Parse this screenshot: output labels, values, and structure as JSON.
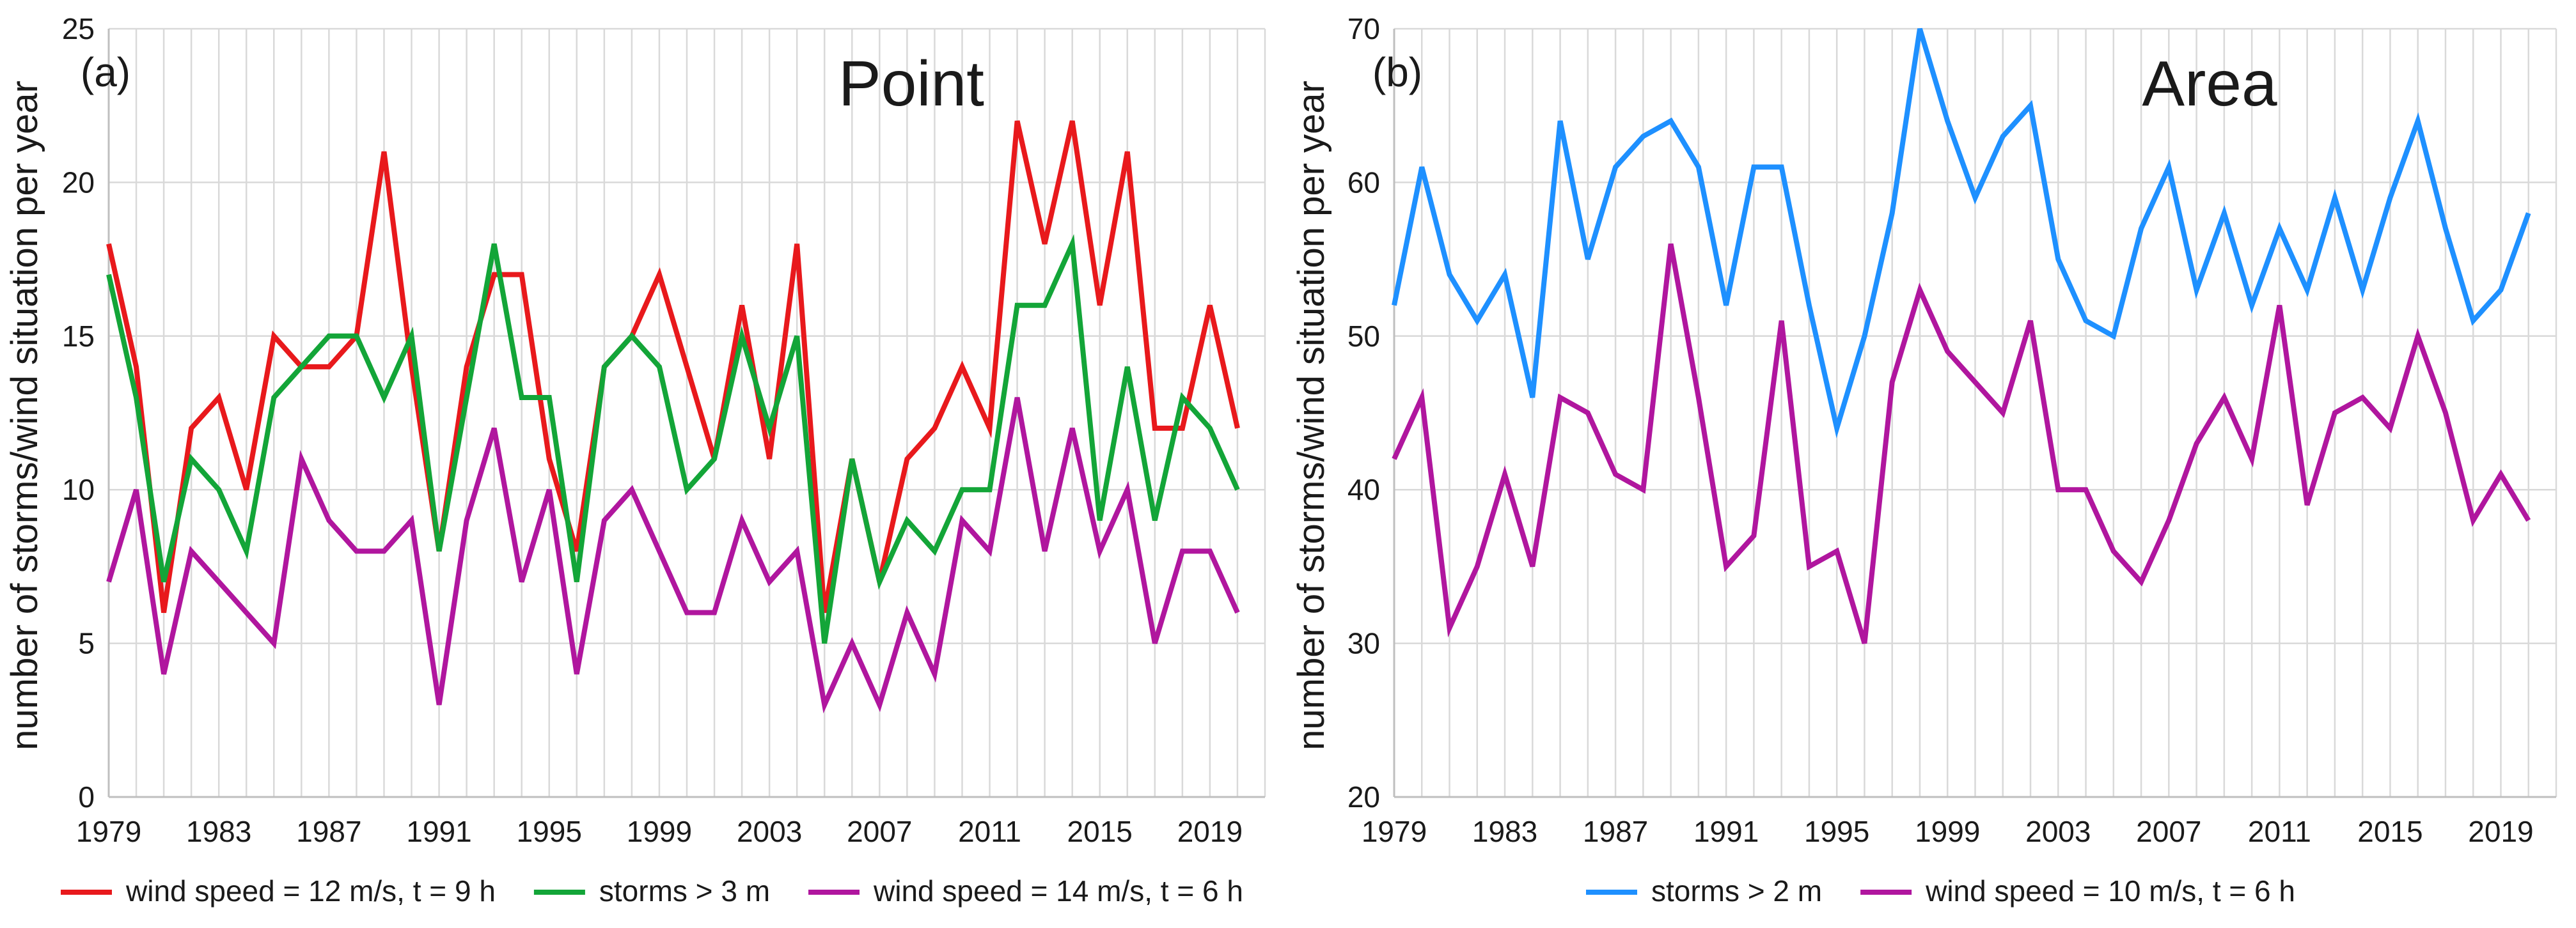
{
  "chart_data": [
    {
      "type": "line",
      "panel_label": "(a)",
      "title": "Point",
      "ylabel": "number of storms/wind situation per year",
      "xlabel": "",
      "ylim": [
        0,
        25
      ],
      "yticks": [
        0,
        5,
        10,
        15,
        20,
        25
      ],
      "xlim": [
        1979,
        2021
      ],
      "xticks": [
        1979,
        1983,
        1987,
        1991,
        1995,
        1999,
        2003,
        2007,
        2011,
        2015,
        2019
      ],
      "grid": true,
      "legend_position": "bottom",
      "x": [
        1979,
        1980,
        1981,
        1982,
        1983,
        1984,
        1985,
        1986,
        1987,
        1988,
        1989,
        1990,
        1991,
        1992,
        1993,
        1994,
        1995,
        1996,
        1997,
        1998,
        1999,
        2000,
        2001,
        2002,
        2003,
        2004,
        2005,
        2006,
        2007,
        2008,
        2009,
        2010,
        2011,
        2012,
        2013,
        2014,
        2015,
        2016,
        2017,
        2018,
        2019,
        2020,
        2021
      ],
      "series": [
        {
          "name": "wind speed = 12 m/s, t = 9 h",
          "color": "#e8191c",
          "values": [
            18,
            14,
            6,
            12,
            13,
            10,
            15,
            14,
            14,
            15,
            21,
            14,
            8,
            14,
            17,
            17,
            11,
            8,
            14,
            15,
            17,
            14,
            11,
            16,
            11,
            18,
            6,
            11,
            7,
            11,
            12,
            14,
            12,
            22,
            18,
            22,
            16,
            21,
            12,
            12,
            16,
            12,
            null
          ]
        },
        {
          "name": "storms > 3 m",
          "color": "#13a538",
          "values": [
            17,
            13,
            7,
            11,
            10,
            8,
            13,
            14,
            15,
            15,
            13,
            15,
            8,
            13,
            18,
            13,
            13,
            7,
            14,
            15,
            14,
            10,
            11,
            15,
            12,
            15,
            5,
            11,
            7,
            9,
            8,
            10,
            10,
            16,
            16,
            18,
            9,
            14,
            9,
            13,
            12,
            10,
            null
          ]
        },
        {
          "name": "wind speed = 14 m/s, t = 6 h",
          "color": "#b0169e",
          "values": [
            7,
            10,
            4,
            8,
            7,
            6,
            5,
            11,
            9,
            8,
            8,
            9,
            3,
            9,
            12,
            7,
            10,
            4,
            9,
            10,
            8,
            6,
            6,
            9,
            7,
            8,
            3,
            5,
            3,
            6,
            4,
            9,
            8,
            13,
            8,
            12,
            8,
            10,
            5,
            8,
            8,
            6,
            null
          ]
        }
      ]
    },
    {
      "type": "line",
      "panel_label": "(b)",
      "title": "Area",
      "ylabel": "number of storms/wind situation per year",
      "xlabel": "",
      "ylim": [
        20,
        70
      ],
      "yticks": [
        20,
        30,
        40,
        50,
        60,
        70
      ],
      "xlim": [
        1979,
        2021
      ],
      "xticks": [
        1979,
        1983,
        1987,
        1991,
        1995,
        1999,
        2003,
        2007,
        2011,
        2015,
        2019
      ],
      "grid": true,
      "legend_position": "bottom",
      "x": [
        1979,
        1980,
        1981,
        1982,
        1983,
        1984,
        1985,
        1986,
        1987,
        1988,
        1989,
        1990,
        1991,
        1992,
        1993,
        1994,
        1995,
        1996,
        1997,
        1998,
        1999,
        2000,
        2001,
        2002,
        2003,
        2004,
        2005,
        2006,
        2007,
        2008,
        2009,
        2010,
        2011,
        2012,
        2013,
        2014,
        2015,
        2016,
        2017,
        2018,
        2019,
        2020,
        2021
      ],
      "series": [
        {
          "name": "storms > 2 m",
          "color": "#1e90ff",
          "values": [
            52,
            61,
            54,
            51,
            54,
            46,
            64,
            55,
            61,
            63,
            64,
            61,
            52,
            61,
            61,
            52,
            44,
            50,
            58,
            70,
            64,
            59,
            63,
            65,
            55,
            51,
            50,
            57,
            61,
            53,
            58,
            52,
            57,
            53,
            59,
            53,
            59,
            64,
            57,
            51,
            53,
            58,
            null
          ]
        },
        {
          "name": "wind speed = 10 m/s, t = 6 h",
          "color": "#b0169e",
          "values": [
            42,
            46,
            31,
            35,
            41,
            35,
            46,
            45,
            41,
            40,
            56,
            46,
            35,
            37,
            51,
            35,
            36,
            30,
            47,
            53,
            49,
            47,
            45,
            51,
            40,
            40,
            36,
            34,
            38,
            43,
            46,
            42,
            52,
            39,
            45,
            46,
            44,
            50,
            45,
            38,
            41,
            38,
            null
          ]
        }
      ]
    }
  ]
}
